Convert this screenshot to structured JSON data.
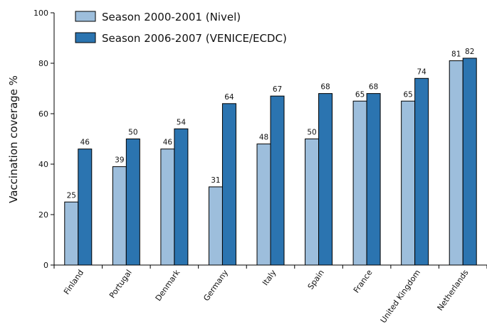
{
  "chart_data": {
    "type": "bar",
    "title": "",
    "xlabel": "",
    "ylabel": "Vaccination coverage %",
    "ylim": [
      0,
      100
    ],
    "yticks": [
      0,
      20,
      40,
      60,
      80,
      100
    ],
    "grid": false,
    "legend_position": "top-left",
    "categories": [
      "Finland",
      "Portugal",
      "Denmark",
      "Germany",
      "Italy",
      "Spain",
      "France",
      "United Kingdom",
      "Netherlands"
    ],
    "series": [
      {
        "name": "Season 2000-2001 (Nivel)",
        "color": "#9dbedc",
        "values": [
          25,
          39,
          46,
          31,
          48,
          50,
          65,
          65,
          81
        ]
      },
      {
        "name": "Season 2006-2007 (VENICE/ECDC)",
        "color": "#2b74b0",
        "values": [
          46,
          50,
          54,
          64,
          67,
          68,
          68,
          74,
          82
        ]
      }
    ]
  }
}
